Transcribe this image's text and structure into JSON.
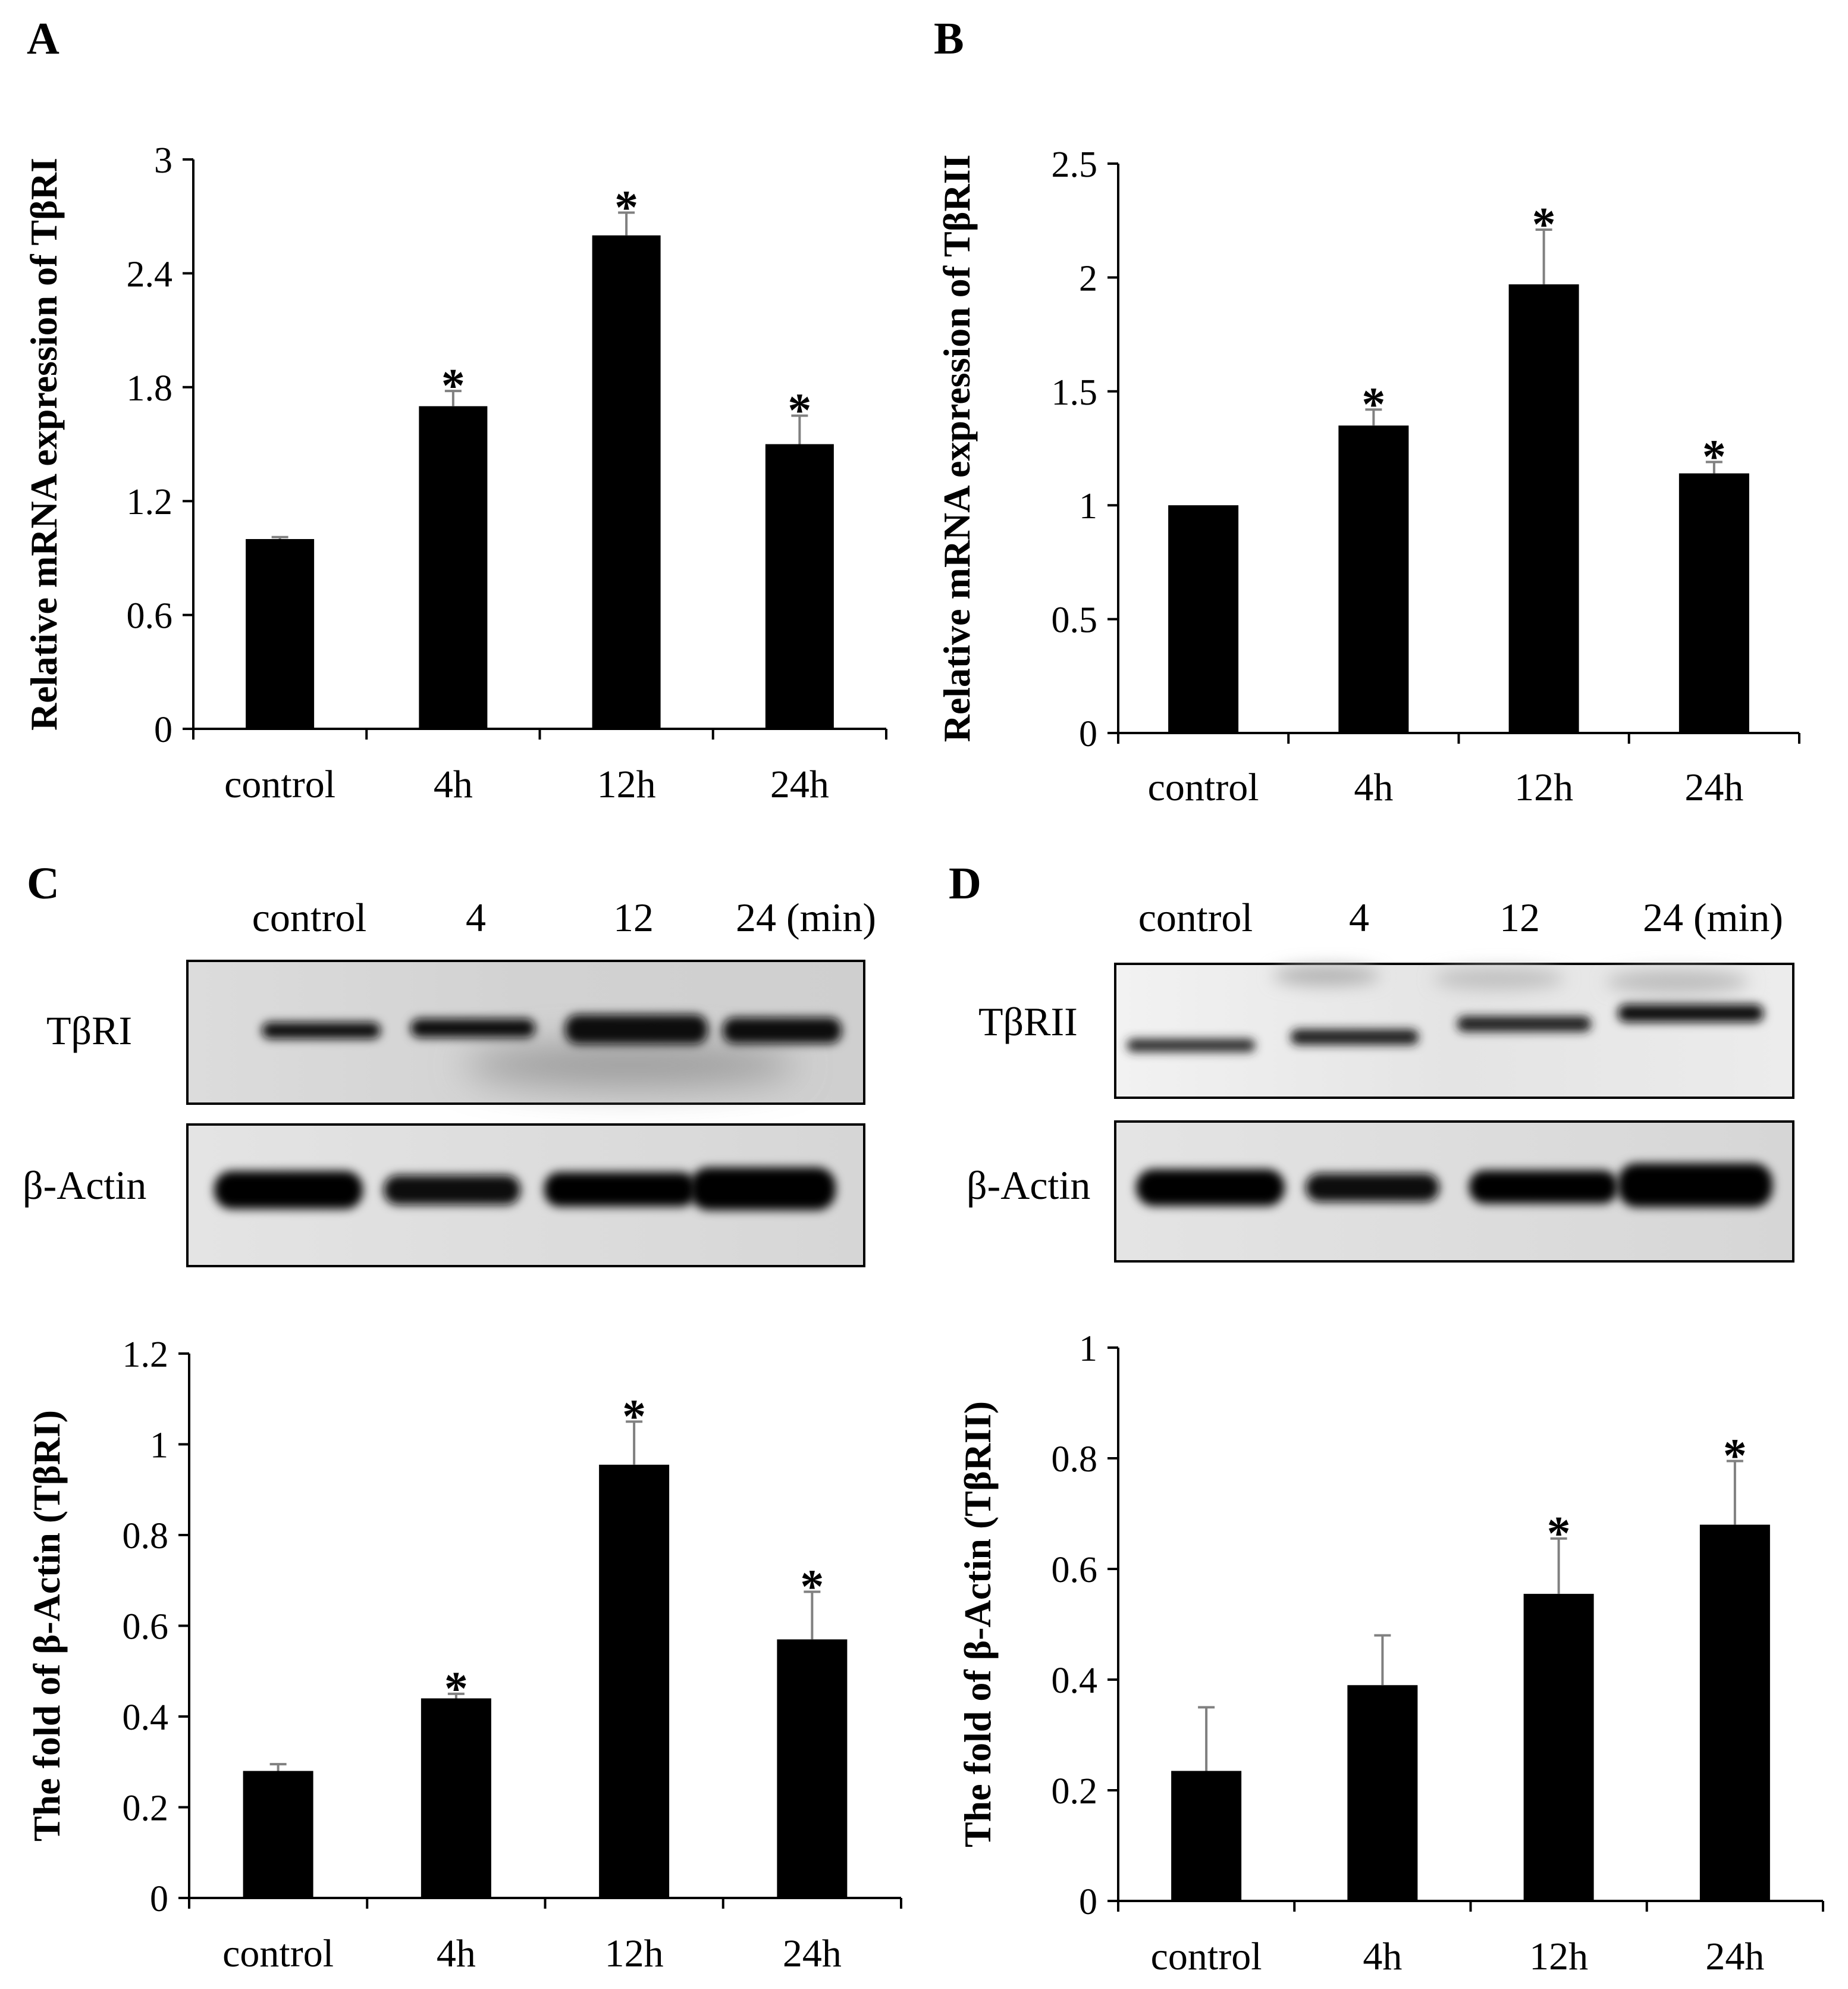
{
  "panels": {
    "A": {
      "letter": "A"
    },
    "B": {
      "letter": "B"
    },
    "C": {
      "letter": "C"
    },
    "D": {
      "letter": "D"
    }
  },
  "blots": {
    "C": {
      "lanes": [
        "control",
        "4",
        "12",
        "24 (min)"
      ],
      "bands": [
        "TβRI",
        "β-Actin"
      ]
    },
    "D": {
      "lanes": [
        "control",
        "4",
        "12",
        "24 (min)"
      ],
      "bands": [
        "TβRII",
        "β-Actin"
      ]
    }
  },
  "chart_data": [
    {
      "id": "A",
      "type": "bar",
      "categories": [
        "control",
        "4h",
        "12h",
        "24h"
      ],
      "values": [
        1.0,
        1.7,
        2.6,
        1.5
      ],
      "errors": [
        0.01,
        0.08,
        0.12,
        0.15
      ],
      "significant": [
        false,
        true,
        true,
        true
      ],
      "ylabel": "Relative mRNA expression of TβRI",
      "ylim": [
        0,
        3
      ],
      "yticks": [
        "0",
        "0.6",
        "1.2",
        "1.8",
        "2.4",
        "3"
      ],
      "star": "*"
    },
    {
      "id": "B",
      "type": "bar",
      "categories": [
        "control",
        "4h",
        "12h",
        "24h"
      ],
      "values": [
        1.0,
        1.35,
        1.97,
        1.14
      ],
      "errors": [
        0.0,
        0.07,
        0.24,
        0.05
      ],
      "significant": [
        false,
        true,
        true,
        true
      ],
      "ylabel": "Relative mRNA expression of TβRII",
      "ylim": [
        0,
        2.5
      ],
      "yticks": [
        "0",
        "0.5",
        "1",
        "1.5",
        "2",
        "2.5"
      ],
      "star": "*"
    },
    {
      "id": "C",
      "type": "bar",
      "categories": [
        "control",
        "4h",
        "12h",
        "24h"
      ],
      "values": [
        0.28,
        0.44,
        0.955,
        0.57
      ],
      "errors": [
        0.015,
        0.01,
        0.095,
        0.105
      ],
      "significant": [
        false,
        true,
        true,
        true
      ],
      "ylabel": "The fold of β-Actin (TβRI)",
      "ylim": [
        0,
        1.2
      ],
      "yticks": [
        "0",
        "0.2",
        "0.4",
        "0.6",
        "0.8",
        "1",
        "1.2"
      ],
      "star": "*"
    },
    {
      "id": "D",
      "type": "bar",
      "categories": [
        "control",
        "4h",
        "12h",
        "24h"
      ],
      "values": [
        0.235,
        0.39,
        0.555,
        0.68
      ],
      "errors": [
        0.115,
        0.09,
        0.1,
        0.115
      ],
      "significant": [
        false,
        false,
        true,
        true
      ],
      "ylabel": "The fold of β-Actin (TβRII)",
      "ylim": [
        0,
        1
      ],
      "yticks": [
        "0",
        "0.2",
        "0.4",
        "0.6",
        "0.8",
        "1"
      ],
      "star": "*"
    }
  ]
}
